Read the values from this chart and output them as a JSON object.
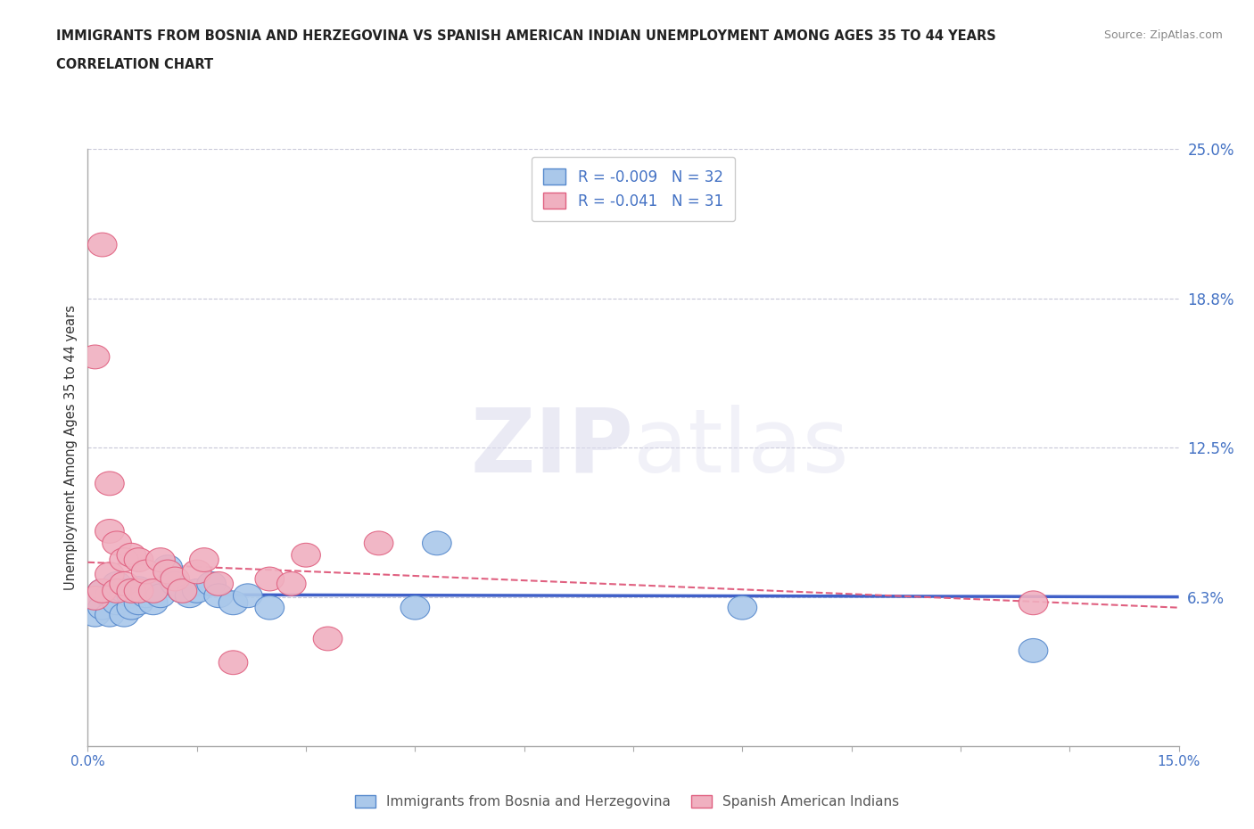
{
  "title_line1": "IMMIGRANTS FROM BOSNIA AND HERZEGOVINA VS SPANISH AMERICAN INDIAN UNEMPLOYMENT AMONG AGES 35 TO 44 YEARS",
  "title_line2": "CORRELATION CHART",
  "source": "Source: ZipAtlas.com",
  "ylabel": "Unemployment Among Ages 35 to 44 years",
  "xlim": [
    0.0,
    0.15
  ],
  "ylim": [
    0.0,
    0.25
  ],
  "xticks": [
    0.0,
    0.015,
    0.03,
    0.045,
    0.06,
    0.075,
    0.09,
    0.105,
    0.12,
    0.135,
    0.15
  ],
  "xtick_labels": [
    "0.0%",
    "",
    "",
    "",
    "",
    "",
    "",
    "",
    "",
    "",
    "15.0%"
  ],
  "ytick_positions": [
    0.0625,
    0.125,
    0.1875,
    0.25
  ],
  "ytick_labels": [
    "6.3%",
    "12.5%",
    "18.8%",
    "25.0%"
  ],
  "grid_color": "#c8c8d8",
  "background_color": "#ffffff",
  "watermark_zip": "ZIP",
  "watermark_atlas": "atlas",
  "r_bosnia": -0.009,
  "n_bosnia": 32,
  "r_spanish": -0.041,
  "n_spanish": 31,
  "blue_color": "#aac8ea",
  "blue_edge": "#5588cc",
  "pink_color": "#f0b0c0",
  "pink_edge": "#e06080",
  "blue_line_color": "#4060c8",
  "pink_line_color": "#e06080",
  "legend_color": "#4472c4",
  "bosnia_scatter_x": [
    0.001,
    0.001,
    0.002,
    0.002,
    0.003,
    0.003,
    0.004,
    0.004,
    0.005,
    0.005,
    0.006,
    0.006,
    0.007,
    0.007,
    0.008,
    0.009,
    0.009,
    0.01,
    0.011,
    0.012,
    0.013,
    0.014,
    0.015,
    0.017,
    0.018,
    0.02,
    0.022,
    0.025,
    0.045,
    0.048,
    0.09,
    0.13
  ],
  "bosnia_scatter_y": [
    0.062,
    0.055,
    0.065,
    0.058,
    0.063,
    0.055,
    0.068,
    0.06,
    0.065,
    0.055,
    0.063,
    0.058,
    0.066,
    0.06,
    0.063,
    0.06,
    0.065,
    0.063,
    0.075,
    0.068,
    0.065,
    0.063,
    0.065,
    0.068,
    0.063,
    0.06,
    0.063,
    0.058,
    0.058,
    0.085,
    0.058,
    0.04
  ],
  "spanish_scatter_x": [
    0.001,
    0.001,
    0.002,
    0.002,
    0.003,
    0.003,
    0.003,
    0.004,
    0.004,
    0.005,
    0.005,
    0.006,
    0.006,
    0.007,
    0.007,
    0.008,
    0.009,
    0.01,
    0.011,
    0.012,
    0.013,
    0.015,
    0.016,
    0.018,
    0.02,
    0.025,
    0.028,
    0.03,
    0.033,
    0.04,
    0.13
  ],
  "spanish_scatter_y": [
    0.163,
    0.062,
    0.21,
    0.065,
    0.11,
    0.09,
    0.072,
    0.085,
    0.065,
    0.078,
    0.068,
    0.08,
    0.065,
    0.078,
    0.065,
    0.073,
    0.065,
    0.078,
    0.073,
    0.07,
    0.065,
    0.073,
    0.078,
    0.068,
    0.035,
    0.07,
    0.068,
    0.08,
    0.045,
    0.085,
    0.06
  ],
  "bosnia_trend_start_y": 0.0635,
  "bosnia_trend_end_y": 0.0625,
  "spanish_trend_start_y": 0.077,
  "spanish_trend_end_y": 0.058
}
